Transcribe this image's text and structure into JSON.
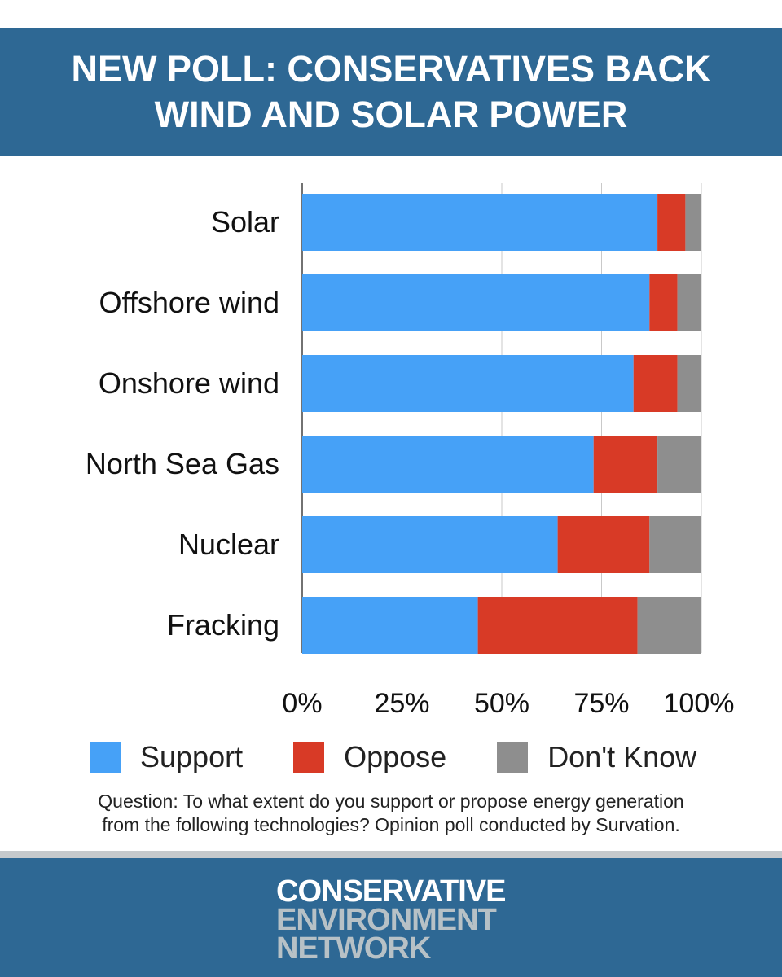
{
  "header": {
    "title_line1": "NEW POLL: CONSERVATIVES BACK",
    "title_line2": "WIND AND SOLAR POWER"
  },
  "chart_data": {
    "type": "bar",
    "orientation": "horizontal",
    "stacked": true,
    "categories": [
      "Solar",
      "Offshore wind",
      "Onshore wind",
      "North Sea Gas",
      "Nuclear",
      "Fracking"
    ],
    "series": [
      {
        "name": "Support",
        "color": "#46a1f7",
        "values": [
          89,
          87,
          83,
          73,
          64,
          44
        ]
      },
      {
        "name": "Oppose",
        "color": "#d83a26",
        "values": [
          7,
          7,
          11,
          16,
          23,
          40
        ]
      },
      {
        "name": "Don't Know",
        "color": "#8e8e8e",
        "values": [
          4,
          6,
          6,
          11,
          13,
          16
        ]
      }
    ],
    "xlim": [
      0,
      100
    ],
    "xticks": [
      "0%",
      "25%",
      "50%",
      "75%",
      "100%"
    ],
    "grid": true,
    "legend": "bottom"
  },
  "legend": {
    "support": "Support",
    "oppose": "Oppose",
    "dont_know": "Don't Know"
  },
  "note": {
    "line1": "Question: To what extent do you support or propose energy generation",
    "line2": "from the following technologies? Opinion poll conducted by Survation."
  },
  "footer": {
    "logo_line1": "CONSERVATIVE",
    "logo_line2": "ENVIRONMENT",
    "logo_line3": "NETWORK"
  },
  "colors": {
    "brand_blue": "#2e6894",
    "support": "#46a1f7",
    "oppose": "#d83a26",
    "dont_know": "#8e8e8e"
  }
}
